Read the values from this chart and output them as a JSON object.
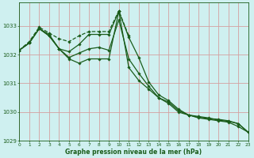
{
  "title": "Graphe pression niveau de la mer (hPa)",
  "background_color": "#cff0f0",
  "grid_color": "#d4a0a0",
  "line_color": "#1a5c1a",
  "xlim": [
    0,
    23
  ],
  "ylim": [
    1029.0,
    1033.8
  ],
  "yticks": [
    1029,
    1030,
    1031,
    1032,
    1033
  ],
  "xticks": [
    0,
    1,
    2,
    3,
    4,
    5,
    6,
    7,
    8,
    9,
    10,
    11,
    12,
    13,
    14,
    15,
    16,
    17,
    18,
    19,
    20,
    21,
    22,
    23
  ],
  "series": [
    {
      "x": [
        0,
        1,
        2,
        3,
        4,
        5,
        6,
        7,
        8,
        9,
        10,
        11,
        12,
        13,
        14,
        15,
        16,
        17,
        18,
        19,
        20,
        21,
        22,
        23
      ],
      "y": [
        1032.15,
        1032.4,
        1032.9,
        1032.7,
        1032.2,
        1032.1,
        1032.35,
        1032.7,
        1032.7,
        1032.7,
        1033.5,
        1032.6,
        1031.9,
        1031.05,
        1030.6,
        1030.4,
        1030.1,
        1029.9,
        1029.8,
        1029.75,
        1029.7,
        1029.65,
        1029.5,
        1029.3
      ],
      "linestyle": "-",
      "linewidth": 0.9
    },
    {
      "x": [
        0,
        1,
        2,
        3,
        4,
        5,
        6,
        7,
        8,
        9,
        10,
        11,
        12,
        13,
        14,
        15,
        16,
        17,
        18,
        19,
        20,
        21,
        22,
        23
      ],
      "y": [
        1032.15,
        1032.4,
        1032.9,
        1032.65,
        1032.2,
        1031.9,
        1032.05,
        1032.2,
        1032.25,
        1032.15,
        1033.2,
        1031.85,
        1031.35,
        1030.9,
        1030.5,
        1030.35,
        1030.05,
        1029.9,
        1029.85,
        1029.8,
        1029.72,
        1029.68,
        1029.6,
        1029.3
      ],
      "linestyle": "-",
      "linewidth": 0.9
    },
    {
      "x": [
        0,
        1,
        2,
        3,
        4,
        5,
        6,
        7,
        8,
        9,
        10,
        11,
        12,
        13,
        14,
        15,
        16,
        17,
        18,
        19,
        20,
        21,
        22,
        23
      ],
      "y": [
        1032.15,
        1032.4,
        1032.9,
        1032.65,
        1032.2,
        1031.85,
        1031.7,
        1031.85,
        1031.85,
        1031.85,
        1033.5,
        1031.55,
        1031.1,
        1030.8,
        1030.5,
        1030.3,
        1030.0,
        1029.9,
        1029.82,
        1029.78,
        1029.75,
        1029.7,
        1029.6,
        1029.3
      ],
      "linestyle": "-",
      "linewidth": 0.9
    },
    {
      "x": [
        0,
        1,
        2,
        3,
        4,
        5,
        6,
        7,
        8,
        9,
        10,
        11
      ],
      "y": [
        1032.15,
        1032.45,
        1032.95,
        1032.75,
        1032.55,
        1032.45,
        1032.65,
        1032.8,
        1032.8,
        1032.8,
        1033.52,
        1032.65
      ],
      "linestyle": "--",
      "linewidth": 0.9
    }
  ]
}
